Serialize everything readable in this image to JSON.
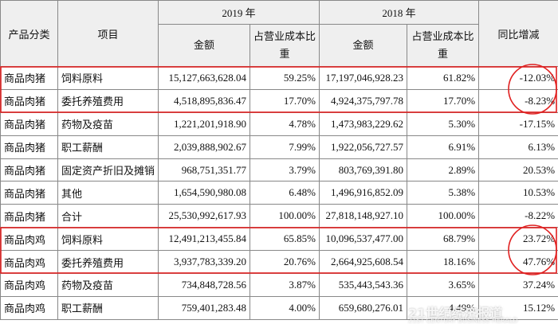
{
  "table": {
    "header": {
      "category": "产品分类",
      "item": "项目",
      "year_2019": "2019 年",
      "year_2018": "2018 年",
      "change": "同比增减",
      "amount_2019": "金额",
      "share_2019": "占营业成本比重",
      "amount_2018": "金额",
      "share_2018": "占营业成本比重"
    },
    "rows": [
      [
        "商品肉猪",
        "饲料原料",
        "15,127,663,628.04",
        "59.25%",
        "17,197,046,928.23",
        "61.82%",
        "-12.03%"
      ],
      [
        "商品肉猪",
        "委托养殖费用",
        "4,518,895,836.47",
        "17.70%",
        "4,924,375,797.78",
        "17.70%",
        "-8.23%"
      ],
      [
        "商品肉猪",
        "药物及疫苗",
        "1,221,201,918.90",
        "4.78%",
        "1,473,983,229.62",
        "5.30%",
        "-17.15%"
      ],
      [
        "商品肉猪",
        "职工薪酬",
        "2,039,888,902.67",
        "7.99%",
        "1,922,056,727.57",
        "6.91%",
        "6.13%"
      ],
      [
        "商品肉猪",
        "固定资产折旧及摊销",
        "968,751,351.77",
        "3.79%",
        "803,769,391.80",
        "2.89%",
        "20.53%"
      ],
      [
        "商品肉猪",
        "其他",
        "1,654,590,980.08",
        "6.48%",
        "1,496,916,852.09",
        "5.38%",
        "10.53%"
      ],
      [
        "商品肉猪",
        "合计",
        "25,530,992,617.93",
        "100.00%",
        "27,818,148,927.10",
        "100.00%",
        "-8.22%"
      ],
      [
        "商品肉鸡",
        "饲料原料",
        "12,491,213,455.84",
        "65.85%",
        "10,096,537,477.00",
        "68.79%",
        "23.72%"
      ],
      [
        "商品肉鸡",
        "委托养殖费用",
        "3,937,783,339.20",
        "20.76%",
        "2,664,925,608.54",
        "18.16%",
        "47.76%"
      ],
      [
        "商品肉鸡",
        "药物及疫苗",
        "734,848,728.56",
        "3.87%",
        "535,443,543.36",
        "3.65%",
        "37.24%"
      ],
      [
        "商品肉鸡",
        "职工薪酬",
        "759,401,283.48",
        "4.00%",
        "659,680,276.01",
        "4.49%",
        "15.12%"
      ]
    ],
    "watermark": {
      "cn": "21世纪经济报道",
      "en": "21ST CENTURY BUSINESS HERALD"
    }
  }
}
